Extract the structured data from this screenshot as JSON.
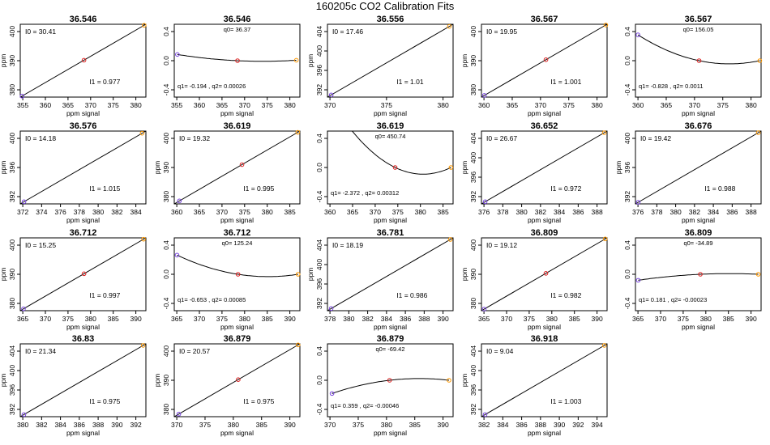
{
  "figure": {
    "title": "160205c   CO2 Calibration Fits",
    "xlabel": "ppm signal",
    "ylabel": "ppm"
  },
  "chart_data": [
    {
      "type": "line",
      "title": "36.546",
      "variant": "linear",
      "xticks": [
        "355",
        "360",
        "365",
        "370",
        "375",
        "380"
      ],
      "yticks": [
        "380",
        "390",
        "400"
      ],
      "points": [
        {
          "x": 355.2,
          "color": "#7744dd"
        },
        {
          "x": 369.2,
          "color": "#dd2222"
        },
        {
          "x": 382.8,
          "color": "#ff9900"
        }
      ],
      "xlim": [
        354.8,
        383.2
      ],
      "ylim": [
        376,
        404
      ],
      "ann1": "I0 =  30.41",
      "ann2": "I1 =  0.977"
    },
    {
      "type": "line",
      "title": "36.546",
      "variant": "residual",
      "xticks": [
        "355",
        "360",
        "365",
        "370",
        "375",
        "380"
      ],
      "yticks": [
        "-0.4",
        "0.0",
        "0.4"
      ],
      "points": [
        {
          "x": 355.5,
          "y": 0.094,
          "color": "#7744dd"
        },
        {
          "x": 369.1,
          "y": 0.0,
          "color": "#dd2222"
        },
        {
          "x": 382.4,
          "y": 0.007,
          "color": "#ff9900"
        }
      ],
      "xlim": [
        354.8,
        383.2
      ],
      "ylim": [
        -0.55,
        0.55
      ],
      "ann1": "q0=  36.37",
      "ann2": "q1= -0.194 ,  q2=  0.00026"
    },
    {
      "type": "line",
      "title": "36.556",
      "variant": "linear",
      "xticks": [
        "370",
        "375",
        "380"
      ],
      "yticks": [
        "392",
        "396",
        "400",
        "404"
      ],
      "points": [
        {
          "x": 370.0,
          "color": "#7744dd"
        },
        {
          "x": 382.6,
          "color": "#ff9900"
        }
      ],
      "xlim": [
        369.6,
        383.0
      ],
      "ylim": [
        390,
        405
      ],
      "ann1": "I0 =  17.46",
      "ann2": "I1 =  1.01"
    },
    {
      "type": "line",
      "title": "36.567",
      "variant": "linear",
      "xticks": [
        "360",
        "365",
        "370",
        "375",
        "380"
      ],
      "yticks": [
        "380",
        "390",
        "400"
      ],
      "points": [
        {
          "x": 356.5,
          "color": "#7744dd"
        },
        {
          "x": 371.1,
          "color": "#dd2222"
        },
        {
          "x": 385.3,
          "color": "#ff9900"
        }
      ],
      "xlim": [
        355.8,
        385.6
      ],
      "ylim": [
        375,
        405
      ],
      "ann1": "I0 =  19.95",
      "ann2": "I1 =  1.001"
    },
    {
      "type": "line",
      "title": "36.567",
      "variant": "residual",
      "xticks": [
        "360",
        "365",
        "370",
        "375",
        "380"
      ],
      "yticks": [
        "-0.4",
        "0.0",
        "0.4"
      ],
      "points": [
        {
          "x": 356.4,
          "y": 0.39,
          "color": "#7744dd"
        },
        {
          "x": 370.9,
          "y": 0.0,
          "color": "#dd2222"
        },
        {
          "x": 385.3,
          "y": 0.0,
          "color": "#ff9900"
        }
      ],
      "xlim": [
        355.8,
        385.6
      ],
      "ylim": [
        -0.55,
        0.55
      ],
      "ann1": "q0=  156.05",
      "ann2": "q1= -0.828 ,  q2=  0.0011"
    },
    {
      "type": "line",
      "title": "36.576",
      "variant": "linear",
      "xticks": [
        "372",
        "374",
        "376",
        "378",
        "380",
        "382",
        "384"
      ],
      "yticks": [
        "392",
        "396",
        "400"
      ],
      "points": [
        {
          "x": 371.6,
          "color": "#7744dd"
        },
        {
          "x": 384.2,
          "color": "#ff9900"
        }
      ],
      "xlim": [
        371.2,
        384.6
      ],
      "ylim": [
        390,
        405
      ],
      "ann1": "I0 =  14.18",
      "ann2": "I1 =  1.015"
    },
    {
      "type": "line",
      "title": "36.619",
      "variant": "linear",
      "xticks": [
        "360",
        "365",
        "370",
        "375",
        "380",
        "385"
      ],
      "yticks": [
        "380",
        "390",
        "400"
      ],
      "points": [
        {
          "x": 359.2,
          "color": "#7744dd"
        },
        {
          "x": 373.9,
          "color": "#dd2222"
        },
        {
          "x": 387.0,
          "color": "#ff9900"
        }
      ],
      "xlim": [
        358.0,
        387.5
      ],
      "ylim": [
        375,
        405
      ],
      "ann1": "I0 =  19.32",
      "ann2": "I1 =  0.995"
    },
    {
      "type": "line",
      "title": "36.619",
      "variant": "residual",
      "xticks": [
        "360",
        "365",
        "370",
        "375",
        "380",
        "385"
      ],
      "yticks": [
        "-0.4",
        "0.0",
        "0.4"
      ],
      "points": [
        {
          "x": 373.9,
          "y": 0.0,
          "color": "#dd2222"
        },
        {
          "x": 387.0,
          "y": 0.0,
          "color": "#ff9900"
        }
      ],
      "xlim": [
        358.0,
        387.5
      ],
      "ylim": [
        -0.55,
        0.55
      ],
      "ann1": "q0=  450.74",
      "ann2": "q1= -2.372 ,  q2=  0.00312"
    },
    {
      "type": "line",
      "title": "36.652",
      "variant": "linear",
      "xticks": [
        "376",
        "378",
        "380",
        "382",
        "384",
        "386",
        "388"
      ],
      "yticks": [
        "392",
        "396",
        "400",
        "404"
      ],
      "points": [
        {
          "x": 375.9,
          "color": "#7744dd"
        },
        {
          "x": 388.7,
          "color": "#ff9900"
        }
      ],
      "xlim": [
        375.5,
        389.0
      ],
      "ylim": [
        390,
        405
      ],
      "ann1": "I0 =  26.67",
      "ann2": "I1 =  0.972"
    },
    {
      "type": "line",
      "title": "36.676",
      "variant": "linear",
      "xticks": [
        "376",
        "378",
        "380",
        "382",
        "384",
        "386",
        "388"
      ],
      "yticks": [
        "392",
        "396",
        "400"
      ],
      "points": [
        {
          "x": 375.9,
          "color": "#7744dd"
        },
        {
          "x": 388.9,
          "color": "#ff9900"
        }
      ],
      "xlim": [
        375.6,
        389.2
      ],
      "ylim": [
        390,
        405
      ],
      "ann1": "I0 =  19.42",
      "ann2": "I1 =  0.988"
    },
    {
      "type": "line",
      "title": "36.712",
      "variant": "linear",
      "xticks": [
        "365",
        "370",
        "375",
        "380",
        "385",
        "390"
      ],
      "yticks": [
        "380",
        "390",
        "400"
      ],
      "points": [
        {
          "x": 364.5,
          "color": "#7744dd"
        },
        {
          "x": 377.6,
          "color": "#dd2222"
        },
        {
          "x": 390.5,
          "color": "#ff9900"
        }
      ],
      "xlim": [
        363.8,
        391.0
      ],
      "ylim": [
        376,
        404
      ],
      "ann1": "I0 =  15.25",
      "ann2": "I1 =  0.997"
    },
    {
      "type": "line",
      "title": "36.712",
      "variant": "residual",
      "xticks": [
        "365",
        "370",
        "375",
        "380",
        "385",
        "390"
      ],
      "yticks": [
        "-0.4",
        "0.0",
        "0.4"
      ],
      "points": [
        {
          "x": 364.4,
          "y": 0.29,
          "color": "#7744dd"
        },
        {
          "x": 377.6,
          "y": 0.0,
          "color": "#dd2222"
        },
        {
          "x": 390.6,
          "y": 0.0,
          "color": "#ff9900"
        }
      ],
      "xlim": [
        363.8,
        391.0
      ],
      "ylim": [
        -0.55,
        0.55
      ],
      "ann1": "q0=  125.24",
      "ann2": "q1= -0.653 ,  q2=  0.00085"
    },
    {
      "type": "line",
      "title": "36.781",
      "variant": "linear",
      "xticks": [
        "378",
        "380",
        "382",
        "384",
        "386",
        "388",
        "390"
      ],
      "yticks": [
        "392",
        "396",
        "400",
        "404"
      ],
      "points": [
        {
          "x": 378.2,
          "color": "#7744dd"
        },
        {
          "x": 391.1,
          "color": "#ff9900"
        }
      ],
      "xlim": [
        377.8,
        391.4
      ],
      "ylim": [
        390,
        405
      ],
      "ann1": "I0 =  18.19",
      "ann2": "I1 =  0.986"
    },
    {
      "type": "line",
      "title": "36.809",
      "variant": "linear",
      "xticks": [
        "365",
        "370",
        "375",
        "380",
        "385",
        "390"
      ],
      "yticks": [
        "380",
        "390",
        "400"
      ],
      "points": [
        {
          "x": 365.9,
          "color": "#7744dd"
        },
        {
          "x": 379.2,
          "color": "#dd2222"
        },
        {
          "x": 392.0,
          "color": "#ff9900"
        }
      ],
      "xlim": [
        365.3,
        392.4
      ],
      "ylim": [
        376,
        404
      ],
      "ann1": "I0 =  19.12",
      "ann2": "I1 =  0.982"
    },
    {
      "type": "line",
      "title": "36.809",
      "variant": "residual",
      "xticks": [
        "365",
        "370",
        "375",
        "380",
        "385",
        "390"
      ],
      "yticks": [
        "-0.4",
        "0.0",
        "0.4"
      ],
      "points": [
        {
          "x": 365.9,
          "y": -0.09,
          "color": "#7744dd"
        },
        {
          "x": 379.3,
          "y": 0.0,
          "color": "#dd2222"
        },
        {
          "x": 391.8,
          "y": 0.0,
          "color": "#ff9900"
        }
      ],
      "xlim": [
        365.3,
        392.4
      ],
      "ylim": [
        -0.55,
        0.55
      ],
      "ann1": "q0= -34.89",
      "ann2": "q1=  0.181 ,  q2= -0.00023"
    },
    {
      "type": "line",
      "title": "36.83",
      "variant": "linear",
      "xticks": [
        "380",
        "382",
        "384",
        "386",
        "388",
        "390",
        "392"
      ],
      "yticks": [
        "392",
        "396",
        "400",
        "404"
      ],
      "points": [
        {
          "x": 379.7,
          "color": "#7744dd"
        },
        {
          "x": 392.8,
          "color": "#ff9900"
        }
      ],
      "xlim": [
        379.3,
        393.1
      ],
      "ylim": [
        390,
        405
      ],
      "ann1": "I0 =  21.34",
      "ann2": "I1 =  0.975"
    },
    {
      "type": "line",
      "title": "36.879",
      "variant": "linear",
      "xticks": [
        "370",
        "375",
        "380",
        "385",
        "390"
      ],
      "yticks": [
        "380",
        "390",
        "400"
      ],
      "points": [
        {
          "x": 367.5,
          "color": "#7744dd"
        },
        {
          "x": 380.6,
          "color": "#dd2222"
        },
        {
          "x": 393.8,
          "color": "#ff9900"
        }
      ],
      "xlim": [
        366.5,
        394.2
      ],
      "ylim": [
        376,
        404
      ],
      "ann1": "I0 =  20.57",
      "ann2": "I1 =  0.975"
    },
    {
      "type": "line",
      "title": "36.879",
      "variant": "residual",
      "xticks": [
        "370",
        "375",
        "380",
        "385",
        "390"
      ],
      "yticks": [
        "-0.4",
        "0.0",
        "0.4"
      ],
      "points": [
        {
          "x": 367.5,
          "y": -0.2,
          "color": "#7744dd"
        },
        {
          "x": 380.2,
          "y": 0.0,
          "color": "#dd2222"
        },
        {
          "x": 393.3,
          "y": 0.0,
          "color": "#ff9900"
        }
      ],
      "xlim": [
        366.5,
        394.2
      ],
      "ylim": [
        -0.55,
        0.55
      ],
      "ann1": "q0= -69.42",
      "ann2": "q1=  0.359 ,  q2= -0.00046"
    },
    {
      "type": "line",
      "title": "36.918",
      "variant": "linear",
      "xticks": [
        "382",
        "384",
        "386",
        "388",
        "390",
        "392",
        "394"
      ],
      "yticks": [
        "392",
        "396",
        "400",
        "404"
      ],
      "points": [
        {
          "x": 380.8,
          "color": "#7744dd"
        },
        {
          "x": 394.0,
          "color": "#ff9900"
        }
      ],
      "xlim": [
        380.4,
        394.3
      ],
      "ylim": [
        390,
        405
      ],
      "ann1": "I0 =  9.04",
      "ann2": "I1 =  1.003"
    }
  ]
}
